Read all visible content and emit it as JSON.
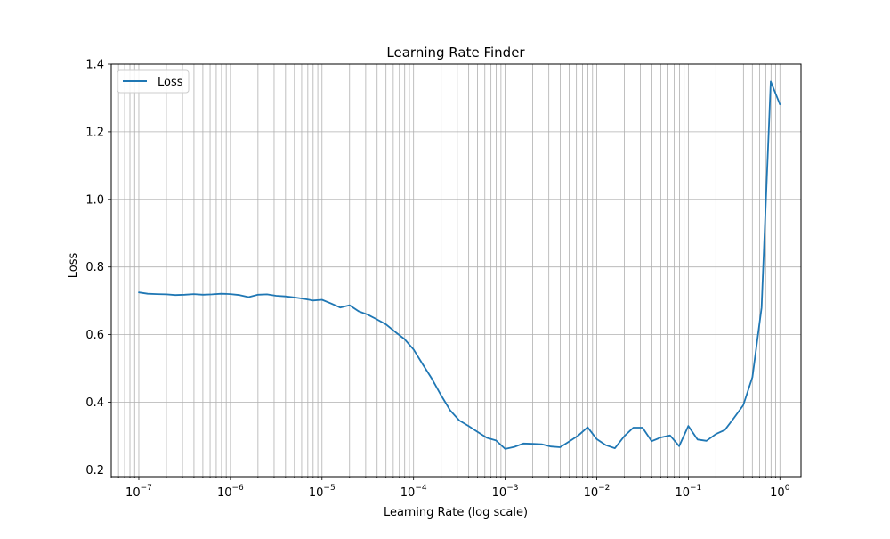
{
  "chart_data": {
    "type": "line",
    "title": "Learning Rate Finder",
    "xlabel": "Learning Rate (log scale)",
    "ylabel": "Loss",
    "xscale": "log",
    "xlim": [
      5e-08,
      1.7
    ],
    "ylim": [
      0.18,
      1.4
    ],
    "xticks": [
      {
        "value": 1e-07,
        "base": "10",
        "exp": "−7"
      },
      {
        "value": 1e-06,
        "base": "10",
        "exp": "−6"
      },
      {
        "value": 1e-05,
        "base": "10",
        "exp": "−5"
      },
      {
        "value": 0.0001,
        "base": "10",
        "exp": "−4"
      },
      {
        "value": 0.001,
        "base": "10",
        "exp": "−3"
      },
      {
        "value": 0.01,
        "base": "10",
        "exp": "−2"
      },
      {
        "value": 0.1,
        "base": "10",
        "exp": "−1"
      },
      {
        "value": 1,
        "base": "10",
        "exp": "0"
      }
    ],
    "yticks": [
      {
        "value": 0.2,
        "label": "0.2"
      },
      {
        "value": 0.4,
        "label": "0.4"
      },
      {
        "value": 0.6,
        "label": "0.6"
      },
      {
        "value": 0.8,
        "label": "0.8"
      },
      {
        "value": 1.0,
        "label": "1.0"
      },
      {
        "value": 1.2,
        "label": "1.2"
      },
      {
        "value": 1.4,
        "label": "1.4"
      }
    ],
    "grid": "both-major-and-minor",
    "legend": {
      "position": "upper-left",
      "entries": [
        "Loss"
      ]
    },
    "series": [
      {
        "name": "Loss",
        "color": "#1f77b4",
        "x": [
          1e-07,
          1.25e-07,
          1.58e-07,
          2e-07,
          2.51e-07,
          3.16e-07,
          3.98e-07,
          5.01e-07,
          6.31e-07,
          7.94e-07,
          1e-06,
          1.26e-06,
          1.58e-06,
          2e-06,
          2.51e-06,
          3.16e-06,
          3.98e-06,
          5.01e-06,
          6.31e-06,
          7.94e-06,
          1e-05,
          1.26e-05,
          1.58e-05,
          2e-05,
          2.51e-05,
          3.16e-05,
          3.98e-05,
          5.01e-05,
          6.31e-05,
          7.94e-05,
          0.0001,
          0.000126,
          0.000158,
          0.0002,
          0.000251,
          0.000316,
          0.000398,
          0.000501,
          0.000631,
          0.000794,
          0.001,
          0.00126,
          0.00158,
          0.002,
          0.00251,
          0.00316,
          0.00398,
          0.00501,
          0.00631,
          0.00794,
          0.01,
          0.0126,
          0.0158,
          0.02,
          0.0251,
          0.0316,
          0.0398,
          0.0501,
          0.0631,
          0.0794,
          0.1,
          0.126,
          0.158,
          0.2,
          0.251,
          0.316,
          0.398,
          0.501,
          0.631,
          0.794,
          1.0
        ],
        "values": [
          0.725,
          0.721,
          0.72,
          0.719,
          0.717,
          0.718,
          0.72,
          0.718,
          0.719,
          0.721,
          0.72,
          0.717,
          0.711,
          0.718,
          0.719,
          0.715,
          0.713,
          0.71,
          0.706,
          0.701,
          0.703,
          0.692,
          0.68,
          0.687,
          0.669,
          0.659,
          0.645,
          0.63,
          0.608,
          0.587,
          0.556,
          0.512,
          0.47,
          0.42,
          0.376,
          0.346,
          0.33,
          0.312,
          0.295,
          0.287,
          0.262,
          0.268,
          0.278,
          0.277,
          0.276,
          0.269,
          0.267,
          0.284,
          0.302,
          0.326,
          0.291,
          0.273,
          0.264,
          0.3,
          0.325,
          0.325,
          0.285,
          0.296,
          0.302,
          0.27,
          0.33,
          0.29,
          0.286,
          0.306,
          0.318,
          0.354,
          0.391,
          0.474,
          0.68,
          1.349,
          1.281
        ]
      }
    ]
  }
}
